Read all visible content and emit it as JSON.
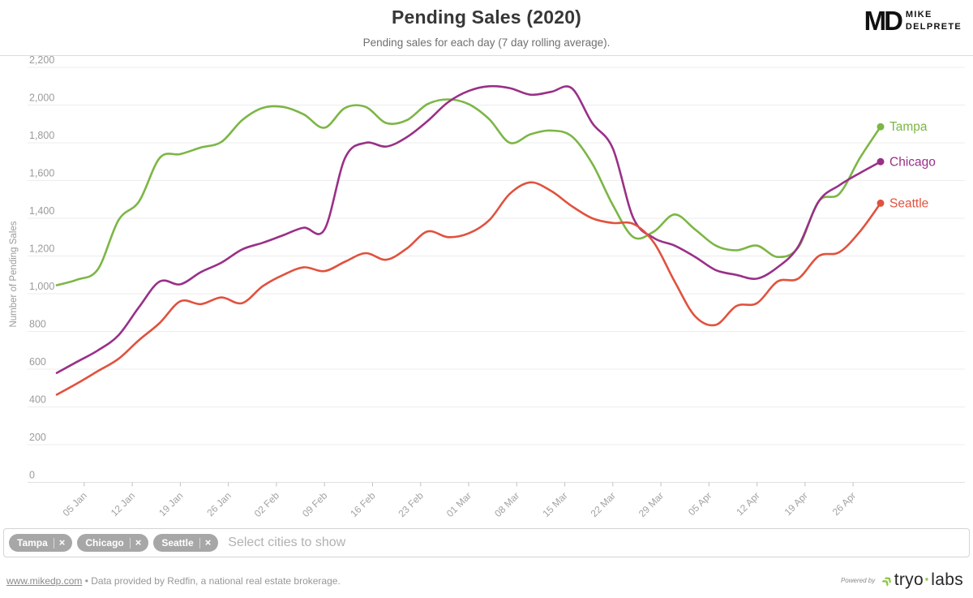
{
  "header": {
    "title": "Pending Sales (2020)",
    "subtitle": "Pending sales for each day (7 day rolling average).",
    "logo": {
      "monogram": "MD",
      "line1": "MIKE",
      "line2": "DELPRETE"
    }
  },
  "chart_data": {
    "type": "line",
    "title": "Pending Sales (2020)",
    "ylabel": "Number of Pending Sales",
    "ylim": [
      0,
      2200
    ],
    "grid": "horizontal",
    "legend_position": "line-end-right",
    "y_ticks": [
      {
        "value": 0,
        "label": "0"
      },
      {
        "value": 200,
        "label": "200"
      },
      {
        "value": 400,
        "label": "400"
      },
      {
        "value": 600,
        "label": "600"
      },
      {
        "value": 800,
        "label": "800"
      },
      {
        "value": 1000,
        "label": "1,000"
      },
      {
        "value": 1200,
        "label": "1,200"
      },
      {
        "value": 1400,
        "label": "1,400"
      },
      {
        "value": 1600,
        "label": "1,600"
      },
      {
        "value": 1800,
        "label": "1,800"
      },
      {
        "value": 2000,
        "label": "2,000"
      },
      {
        "value": 2200,
        "label": "2,200"
      }
    ],
    "x_ticks": [
      {
        "day": 4,
        "label": "05 Jan"
      },
      {
        "day": 11,
        "label": "12 Jan"
      },
      {
        "day": 18,
        "label": "19 Jan"
      },
      {
        "day": 25,
        "label": "26 Jan"
      },
      {
        "day": 32,
        "label": "02 Feb"
      },
      {
        "day": 39,
        "label": "09 Feb"
      },
      {
        "day": 46,
        "label": "16 Feb"
      },
      {
        "day": 53,
        "label": "23 Feb"
      },
      {
        "day": 60,
        "label": "01 Mar"
      },
      {
        "day": 67,
        "label": "08 Mar"
      },
      {
        "day": 74,
        "label": "15 Mar"
      },
      {
        "day": 81,
        "label": "22 Mar"
      },
      {
        "day": 88,
        "label": "29 Mar"
      },
      {
        "day": 95,
        "label": "05 Apr"
      },
      {
        "day": 102,
        "label": "12 Apr"
      },
      {
        "day": 109,
        "label": "19 Apr"
      },
      {
        "day": 116,
        "label": "26 Apr"
      }
    ],
    "x_days": [
      0,
      3,
      6,
      9,
      12,
      15,
      18,
      21,
      24,
      27,
      30,
      33,
      36,
      39,
      42,
      45,
      48,
      51,
      54,
      57,
      60,
      63,
      66,
      69,
      72,
      75,
      78,
      81,
      84,
      87,
      90,
      93,
      96,
      99,
      102,
      105,
      108,
      111,
      114,
      117,
      120
    ],
    "x_dates": [
      "01 Jan",
      "04 Jan",
      "07 Jan",
      "10 Jan",
      "13 Jan",
      "16 Jan",
      "19 Jan",
      "22 Jan",
      "25 Jan",
      "28 Jan",
      "31 Jan",
      "03 Feb",
      "06 Feb",
      "09 Feb",
      "12 Feb",
      "15 Feb",
      "18 Feb",
      "21 Feb",
      "24 Feb",
      "27 Feb",
      "01 Mar",
      "04 Mar",
      "07 Mar",
      "10 Mar",
      "13 Mar",
      "16 Mar",
      "19 Mar",
      "22 Mar",
      "25 Mar",
      "28 Mar",
      "31 Mar",
      "03 Apr",
      "06 Apr",
      "09 Apr",
      "12 Apr",
      "15 Apr",
      "18 Apr",
      "21 Apr",
      "24 Apr",
      "27 Apr",
      "30 Apr"
    ],
    "series": [
      {
        "name": "Tampa",
        "color": "#7cb645",
        "values": [
          1045,
          1075,
          1130,
          1390,
          1490,
          1720,
          1740,
          1775,
          1805,
          1920,
          1985,
          1990,
          1950,
          1880,
          1985,
          1990,
          1905,
          1920,
          2005,
          2030,
          2005,
          1925,
          1800,
          1845,
          1865,
          1835,
          1690,
          1470,
          1300,
          1330,
          1420,
          1340,
          1255,
          1230,
          1255,
          1195,
          1245,
          1490,
          1530,
          1720,
          1885
        ]
      },
      {
        "name": "Chicago",
        "color": "#993087",
        "values": [
          580,
          640,
          700,
          780,
          930,
          1065,
          1050,
          1115,
          1165,
          1235,
          1270,
          1310,
          1350,
          1340,
          1720,
          1800,
          1780,
          1830,
          1915,
          2015,
          2075,
          2100,
          2090,
          2055,
          2070,
          2090,
          1905,
          1770,
          1400,
          1295,
          1255,
          1195,
          1125,
          1100,
          1080,
          1140,
          1250,
          1490,
          1575,
          1640,
          1700
        ]
      },
      {
        "name": "Seattle",
        "color": "#e0523e",
        "values": [
          465,
          525,
          590,
          655,
          755,
          845,
          960,
          945,
          980,
          950,
          1040,
          1100,
          1140,
          1120,
          1170,
          1215,
          1180,
          1240,
          1330,
          1300,
          1320,
          1390,
          1530,
          1590,
          1545,
          1465,
          1400,
          1375,
          1370,
          1270,
          1065,
          880,
          835,
          935,
          950,
          1065,
          1080,
          1200,
          1220,
          1330,
          1480
        ]
      }
    ]
  },
  "select": {
    "chips": [
      {
        "label": "Tampa"
      },
      {
        "label": "Chicago"
      },
      {
        "label": "Seattle"
      }
    ],
    "remove_icon": "×",
    "placeholder": "Select cities to show"
  },
  "footer": {
    "link": "www.mikedp.com",
    "separator": "•",
    "text": "Data provided by Redfin, a national real estate brokerage.",
    "powered_by": "Powered by",
    "brand": {
      "chevron": "»",
      "name_left": "tryo",
      "dot": "·",
      "name_right": "labs"
    }
  }
}
